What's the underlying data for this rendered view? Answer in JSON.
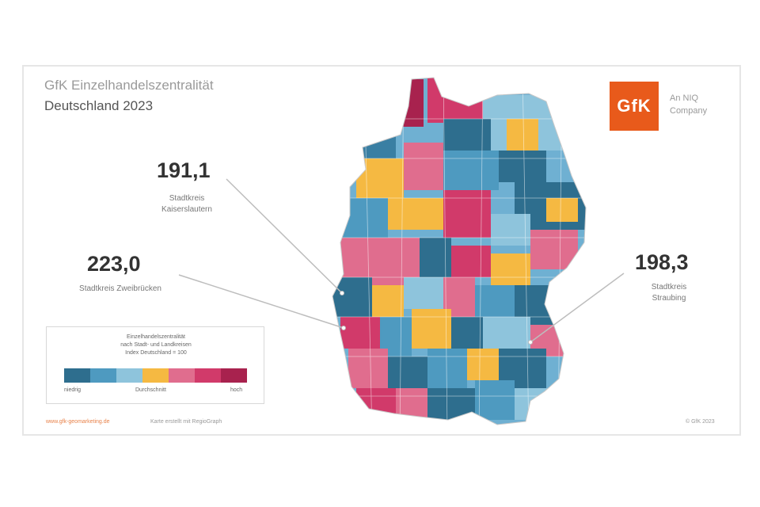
{
  "title": {
    "line1": "GfK Einzelhandelszentralität",
    "line2": "Deutschland 2023"
  },
  "logo": {
    "text": "GfK",
    "tagline_1": "An NIQ",
    "tagline_2": "Company",
    "color": "#e85a1b"
  },
  "callouts": [
    {
      "value": "191,1",
      "label_1": "Stadtkreis",
      "label_2": "Kaiserslautern"
    },
    {
      "value": "223,0",
      "label_1": "Stadtkreis Zweibrücken",
      "label_2": ""
    },
    {
      "value": "198,3",
      "label_1": "Stadtkreis",
      "label_2": "Straubing"
    }
  ],
  "legend": {
    "line_1": "Einzelhandelszentralität",
    "line_2": "nach Stadt- und Landkreisen",
    "line_3": "Index Deutschland = 100",
    "low_label": "niedrig",
    "mid_label": "Durchschnitt",
    "high_label": "hoch",
    "colors": [
      "#2e6e8e",
      "#4e9ac0",
      "#8ec4dc",
      "#f5b942",
      "#e06d8e",
      "#d13a6a",
      "#a8224e"
    ]
  },
  "footer": {
    "link": "www.gfk-geomarketing.de",
    "note": "Karte erstellt mit RegioGraph",
    "copyright": "© GfK 2023"
  }
}
